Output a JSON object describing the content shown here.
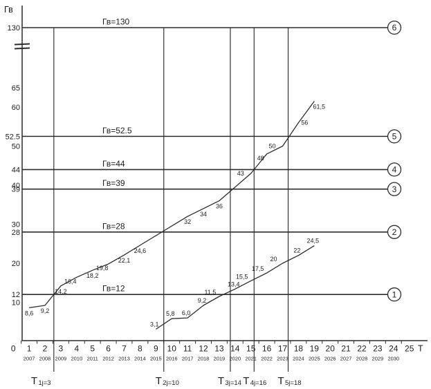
{
  "axes": {
    "y_label": "Гв",
    "x_label": "Т"
  },
  "chart_data": {
    "type": "line",
    "title": "",
    "xlabel": "Т",
    "ylabel": "Гв",
    "xlim": [
      0,
      25
    ],
    "ylim": [
      0,
      130
    ],
    "grid": false,
    "axis_break_between": [
      65,
      130
    ],
    "x_axis": {
      "ticks": [
        "0",
        "1",
        "2",
        "3",
        "4",
        "5",
        "6",
        "7",
        "8",
        "9",
        "10",
        "11",
        "12",
        "13",
        "14",
        "15",
        "16",
        "17",
        "18",
        "19",
        "20",
        "21",
        "22",
        "23",
        "24",
        "25"
      ],
      "years": [
        "2007",
        "2008",
        "2009",
        "2010",
        "2011",
        "2012",
        "2013",
        "2014",
        "2015",
        "2016",
        "2017",
        "2018",
        "2019",
        "2020",
        "2021",
        "2022",
        "2023",
        "2024",
        "2025",
        "2026",
        "2027",
        "2028",
        "2029",
        "2030"
      ]
    },
    "y_axis": {
      "labels": [
        {
          "v": 130,
          "text": "130"
        },
        {
          "v": 65,
          "text": "65"
        },
        {
          "v": 60,
          "text": "60"
        },
        {
          "v": 52.5,
          "text": "52.5"
        },
        {
          "v": 50,
          "text": "50"
        },
        {
          "v": 44,
          "text": "44"
        },
        {
          "v": 40,
          "text": "40"
        },
        {
          "v": 39,
          "text": "39"
        },
        {
          "v": 30,
          "text": "30"
        },
        {
          "v": 28,
          "text": "28"
        },
        {
          "v": 20,
          "text": "20"
        },
        {
          "v": 12,
          "text": "12"
        },
        {
          "v": 10,
          "text": "10"
        }
      ]
    },
    "thresholds": [
      {
        "value": 130,
        "label": "Гв=130",
        "circle": "6"
      },
      {
        "value": 52.5,
        "label": "Гв=52.5",
        "circle": "5"
      },
      {
        "value": 44,
        "label": "Гв=44",
        "circle": "4"
      },
      {
        "value": 39,
        "label": "Гв=39",
        "circle": "3"
      },
      {
        "value": 28,
        "label": "Гв=28",
        "circle": "2"
      },
      {
        "value": 12,
        "label": "Гв=12",
        "circle": "1"
      }
    ],
    "milestones": [
      {
        "main": "Т",
        "sub": "1j=3",
        "t_label": 3,
        "t_reached": 2.56,
        "threshold": 12
      },
      {
        "main": "Т",
        "sub": "2j=10",
        "t_label": 10,
        "t_reached": 9.5,
        "threshold": 28
      },
      {
        "main": "Т",
        "sub": "3j=14",
        "t_label": 14,
        "t_reached": 13.7,
        "threshold": 39
      },
      {
        "main": "Т",
        "sub": "4j=16",
        "t_label": 16,
        "t_reached": 15.2,
        "threshold": 44
      },
      {
        "main": "Т",
        "sub": "5j=18",
        "t_label": 18,
        "t_reached": 17.35,
        "threshold": 52.5
      }
    ],
    "series": [
      {
        "name": "upper-curve",
        "points": [
          {
            "t": 1,
            "v": 8.6,
            "label": "8,6",
            "pos": "below"
          },
          {
            "t": 2,
            "v": 9.2,
            "label": "9,2",
            "pos": "below"
          },
          {
            "t": 3,
            "v": 14.2,
            "label": "14,2",
            "pos": "below"
          },
          {
            "t": 4,
            "v": 16.4,
            "label": "16,4",
            "pos": "below-left"
          },
          {
            "t": 5,
            "v": 18.2,
            "label": "18,2",
            "pos": "below"
          },
          {
            "t": 6,
            "v": 19.8,
            "label": "19,8",
            "pos": "below-left"
          },
          {
            "t": 7,
            "v": 22.1,
            "label": "22,1",
            "pos": "below"
          },
          {
            "t": 8,
            "v": 24.6,
            "label": "24,6",
            "pos": "below"
          },
          {
            "t": 11,
            "v": 32,
            "label": "32",
            "pos": "below"
          },
          {
            "t": 12,
            "v": 34,
            "label": "34",
            "pos": "below"
          },
          {
            "t": 13,
            "v": 36,
            "label": "36",
            "pos": "below"
          },
          {
            "t": 15,
            "v": 43,
            "label": "43",
            "pos": "left"
          },
          {
            "t": 16,
            "v": 48,
            "label": "48",
            "pos": "below-left"
          },
          {
            "t": 17,
            "v": 50,
            "label": "50",
            "pos": "left"
          },
          {
            "t": 18,
            "v": 56,
            "label": "56",
            "pos": "right"
          },
          {
            "t": 19,
            "v": 61.5,
            "label": "61,5",
            "pos": "below-right"
          }
        ]
      },
      {
        "name": "lower-curve",
        "points": [
          {
            "t": 9,
            "v": 3.1,
            "label": "3,1",
            "pos": "above"
          },
          {
            "t": 10,
            "v": 5.8,
            "label": "5,8",
            "pos": "above"
          },
          {
            "t": 11,
            "v": 6.0,
            "label": "6,0",
            "pos": "above"
          },
          {
            "t": 12,
            "v": 9.2,
            "label": "9,2",
            "pos": "above"
          },
          {
            "t": 13,
            "v": 11.5,
            "label": "11,5",
            "pos": "above-left"
          },
          {
            "t": 14,
            "v": 13.4,
            "label": "13,4",
            "pos": "above"
          },
          {
            "t": 15,
            "v": 15.5,
            "label": "15,5",
            "pos": "above-left"
          },
          {
            "t": 16,
            "v": 17.5,
            "label": "17,5",
            "pos": "above-left"
          },
          {
            "t": 17,
            "v": 20,
            "label": "20",
            "pos": "above-left"
          },
          {
            "t": 18,
            "v": 22,
            "label": "22",
            "pos": "above"
          },
          {
            "t": 19,
            "v": 24.5,
            "label": "24,5",
            "pos": "above"
          }
        ]
      }
    ],
    "colors": {
      "line": "#2b2b2b",
      "text": "#1c1c1c",
      "background": "#ffffff"
    }
  }
}
